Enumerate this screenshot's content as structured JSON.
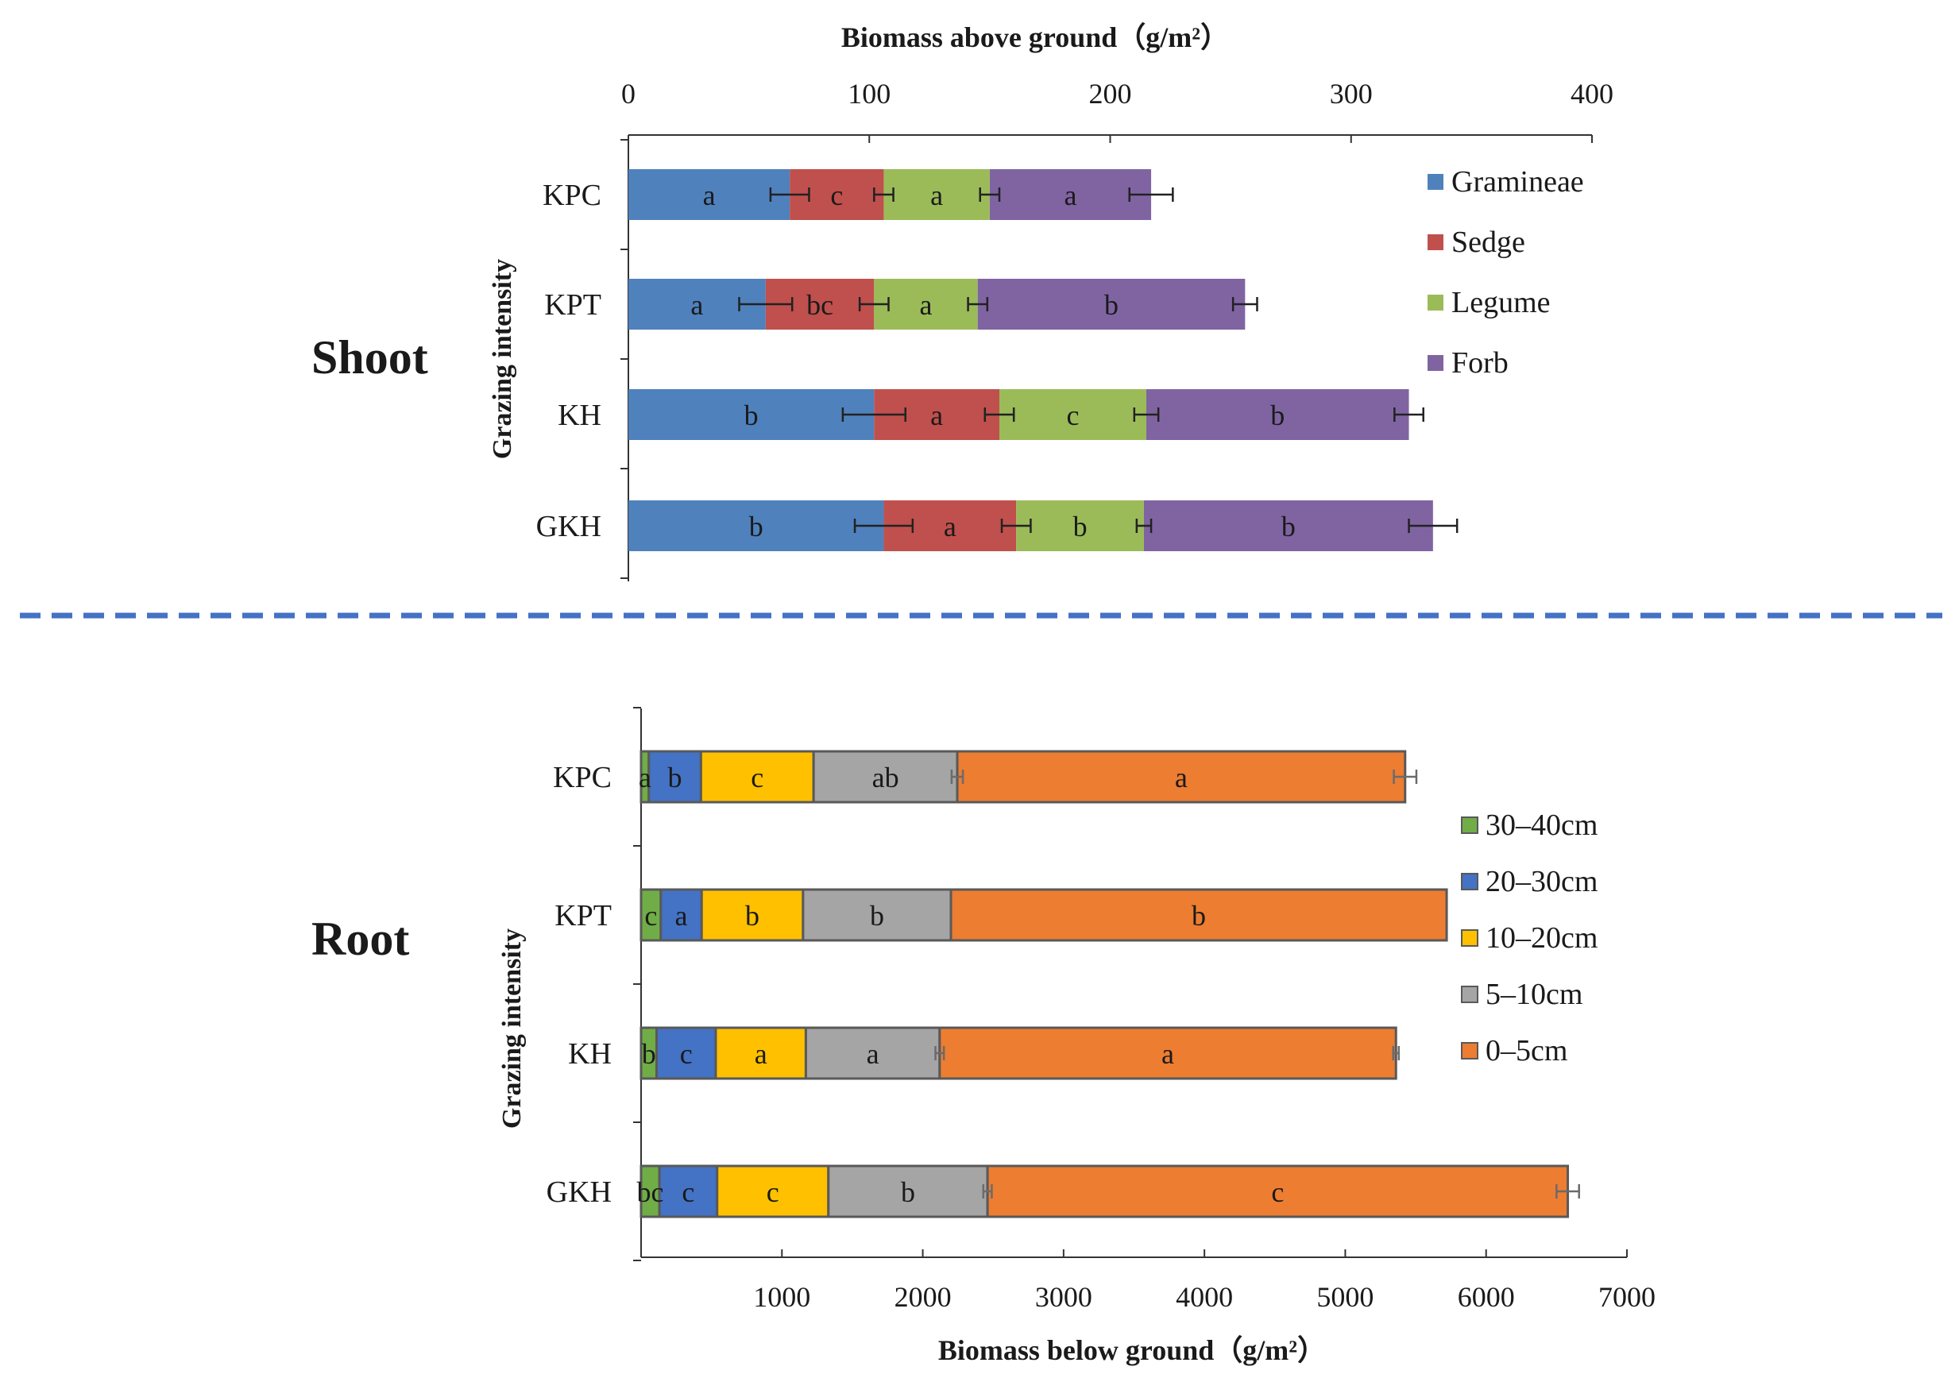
{
  "labels": {
    "shoot": "Shoot",
    "root": "Root"
  },
  "colors": {
    "divider": "#4472C4"
  },
  "chart_data": [
    {
      "type": "bar",
      "orientation": "horizontal",
      "stacked": true,
      "panel": "shoot",
      "xlabel": "Biomass above ground（g/m²）",
      "ylabel": "Grazing intensity",
      "xlim": [
        0,
        400
      ],
      "xticks": [
        0,
        100,
        200,
        300,
        400
      ],
      "x_axis_position": "top",
      "categories": [
        "KPC",
        "KPT",
        "KH",
        "GKH"
      ],
      "series": [
        {
          "name": "Gramineae",
          "color": "#4F81BD",
          "values": [
            67,
            57,
            102,
            106
          ],
          "errors": [
            8,
            11,
            13,
            12
          ],
          "letters": [
            "a",
            "a",
            "b",
            "b"
          ]
        },
        {
          "name": "Sedge",
          "color": "#C0504D",
          "values": [
            39,
            45,
            52,
            55
          ],
          "errors": [
            4,
            6,
            6,
            6
          ],
          "letters": [
            "c",
            "bc",
            "a",
            "a"
          ]
        },
        {
          "name": "Legume",
          "color": "#9BBB59",
          "values": [
            44,
            43,
            61,
            53
          ],
          "errors": [
            4,
            4,
            5,
            3
          ],
          "letters": [
            "a",
            "a",
            "c",
            "b"
          ]
        },
        {
          "name": "Forb",
          "color": "#8064A2",
          "values": [
            67,
            111,
            109,
            120
          ],
          "errors": [
            9,
            5,
            6,
            10
          ],
          "letters": [
            "a",
            "b",
            "b",
            "b"
          ]
        }
      ],
      "legend": "right"
    },
    {
      "type": "bar",
      "orientation": "horizontal",
      "stacked": true,
      "panel": "root",
      "xlabel": "Biomass below ground（g/m²）",
      "ylabel": "Grazing intensity",
      "xlim": [
        0,
        7000
      ],
      "xticks": [
        1000,
        2000,
        3000,
        4000,
        5000,
        6000,
        7000
      ],
      "x_axis_position": "bottom",
      "categories": [
        "KPC",
        "KPT",
        "KH",
        "GKH"
      ],
      "series": [
        {
          "name": "30–40cm",
          "color": "#70AD47",
          "values": [
            55,
            140,
            110,
            130
          ],
          "errors": [
            0,
            0,
            0,
            0
          ],
          "letters": [
            "a",
            "c",
            "b",
            "bc"
          ]
        },
        {
          "name": "20–30cm",
          "color": "#4472C4",
          "values": [
            370,
            290,
            420,
            410
          ],
          "errors": [
            0,
            0,
            0,
            0
          ],
          "letters": [
            "b",
            "a",
            "c",
            "c"
          ]
        },
        {
          "name": "10–20cm",
          "color": "#FFC000",
          "values": [
            800,
            720,
            640,
            790
          ],
          "errors": [
            0,
            0,
            0,
            0
          ],
          "letters": [
            "c",
            "b",
            "a",
            "c"
          ]
        },
        {
          "name": "5–10cm",
          "color": "#A5A5A5",
          "values": [
            1020,
            1050,
            950,
            1130
          ],
          "errors": [
            40,
            0,
            30,
            30
          ],
          "letters": [
            "ab",
            "b",
            "a",
            "b"
          ]
        },
        {
          "name": "0–5cm",
          "color": "#ED7D31",
          "values": [
            3180,
            3520,
            3240,
            4120
          ],
          "errors": [
            80,
            0,
            20,
            80
          ],
          "letters": [
            "a",
            "b",
            "a",
            "c"
          ]
        }
      ],
      "legend": "right"
    }
  ]
}
